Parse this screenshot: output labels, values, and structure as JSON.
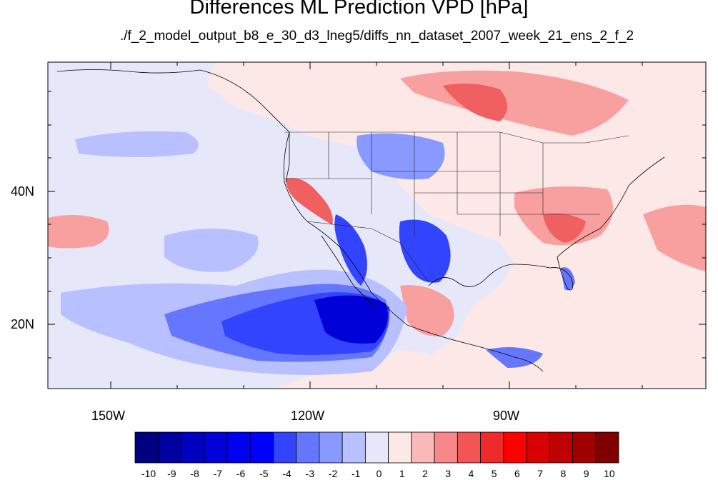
{
  "title": "Differences ML Prediction VPD [hPa]",
  "subtitle": "./f_2_model_output_b8_e_30_d3_lneg5/diffs_nn_dataset_2007_week_21_ens_2_f_2",
  "axes": {
    "lon_labels": [
      "150W",
      "120W",
      "90W"
    ],
    "lat_labels": [
      "40N",
      "20N"
    ]
  },
  "colorbar": {
    "labels": [
      "-10",
      "-9",
      "-8",
      "-7",
      "-6",
      "-5",
      "-4",
      "-3",
      "-2",
      "-1",
      "0",
      "1",
      "2",
      "3",
      "4",
      "5",
      "6",
      "7",
      "8",
      "9",
      "10"
    ],
    "colors": [
      "#000080",
      "#0000a0",
      "#0000c0",
      "#0000d8",
      "#0000f0",
      "#0000ff",
      "#3344ff",
      "#6677ff",
      "#8899ff",
      "#b8c0ff",
      "#e6e8fa",
      "#fde8e8",
      "#fbb8b8",
      "#f88888",
      "#f25555",
      "#ee2a2a",
      "#ff0000",
      "#d80000",
      "#c00000",
      "#a00000",
      "#800000"
    ]
  },
  "map_colors": {
    "ocean_neutral": "#e6e8fa",
    "light_red": "#fde8e8",
    "mid_red": "#f8a0a0",
    "strong_red": "#f06060",
    "light_blue": "#b8c0ff",
    "mid_blue": "#8899ff",
    "strong_blue": "#3344ff",
    "deep_blue": "#0000d8"
  }
}
